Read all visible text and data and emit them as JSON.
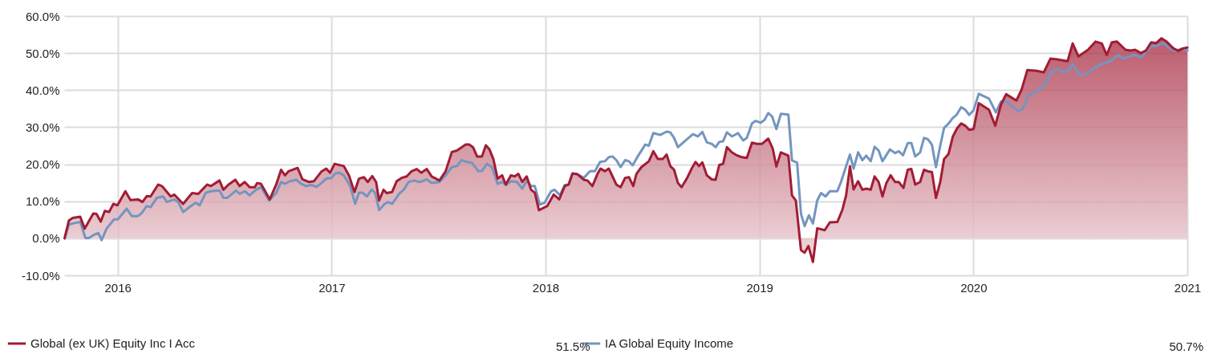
{
  "chart_data": {
    "type": "area",
    "xlim": [
      2015.75,
      2021
    ],
    "xticks": [
      2016,
      2017,
      2018,
      2019,
      2020,
      2021
    ],
    "ylim": [
      -10,
      60
    ],
    "yticks": [
      {
        "value": -10,
        "label": "-10.0%"
      },
      {
        "value": 0,
        "label": "0.0%"
      },
      {
        "value": 10,
        "label": "10.0%"
      },
      {
        "value": 20,
        "label": "20.0%"
      },
      {
        "value": 30,
        "label": "30.0%"
      },
      {
        "value": 40,
        "label": "40.0%"
      },
      {
        "value": 50,
        "label": "50.0%"
      },
      {
        "value": 60,
        "label": "60.0%"
      }
    ],
    "grid": true,
    "legend": "bottom",
    "annotations": [
      "51.5%",
      "50.7%"
    ],
    "series": [
      {
        "name": "Global (ex UK) Equity Inc I Acc",
        "color": "#a21c35",
        "x": [
          2015.752,
          2015.772,
          2015.79,
          2015.825,
          2015.846,
          2015.886,
          2015.901,
          2015.921,
          2015.94,
          2015.96,
          2015.98,
          2015.999,
          2016.036,
          2016.06,
          2016.095,
          2016.116,
          2016.136,
          2016.154,
          2016.189,
          2016.207,
          2016.248,
          2016.265,
          2016.306,
          2016.348,
          2016.377,
          2016.418,
          2016.436,
          2016.476,
          2016.494,
          2016.518,
          2016.55,
          2016.57,
          2016.594,
          2016.617,
          2016.641,
          2016.652,
          2016.67,
          2016.711,
          2016.741,
          2016.764,
          2016.782,
          2016.799,
          2016.841,
          2016.864,
          2016.893,
          2016.917,
          2016.952,
          2016.975,
          2016.993,
          2017.014,
          2017.057,
          2017.081,
          2017.107,
          2017.128,
          2017.151,
          2017.169,
          2017.19,
          2017.208,
          2017.222,
          2017.243,
          2017.257,
          2017.283,
          2017.304,
          2017.327,
          2017.351,
          2017.374,
          2017.398,
          2017.419,
          2017.445,
          2017.468,
          2017.504,
          2017.533,
          2017.562,
          2017.586,
          2017.627,
          2017.644,
          2017.662,
          2017.68,
          2017.703,
          2017.721,
          2017.738,
          2017.756,
          2017.776,
          2017.797,
          2017.814,
          2017.838,
          2017.856,
          2017.873,
          2017.891,
          2017.912,
          2017.932,
          2017.95,
          2017.969,
          2018.008,
          2018.038,
          2018.064,
          2018.09,
          2018.108,
          2018.126,
          2018.149,
          2018.179,
          2018.196,
          2018.219,
          2018.243,
          2018.257,
          2018.278,
          2018.296,
          2018.331,
          2018.351,
          2018.372,
          2018.39,
          2018.41,
          2018.425,
          2018.448,
          2018.483,
          2018.504,
          2018.525,
          2018.548,
          2018.566,
          2018.583,
          2018.601,
          2018.619,
          2018.636,
          2018.66,
          2018.683,
          2018.701,
          2018.718,
          2018.733,
          2018.754,
          2018.777,
          2018.795,
          2018.812,
          2018.83,
          2018.848,
          2018.871,
          2018.894,
          2018.918,
          2018.941,
          2018.965,
          2018.988,
          2019.012,
          2019.041,
          2019.062,
          2019.079,
          2019.1,
          2019.135,
          2019.152,
          2019.17,
          2019.194,
          2019.211,
          2019.229,
          2019.25,
          2019.27,
          2019.305,
          2019.329,
          2019.364,
          2019.387,
          2019.405,
          2019.423,
          2019.44,
          2019.461,
          2019.481,
          2019.499,
          2019.52,
          2019.538,
          2019.557,
          2019.575,
          2019.593,
          2019.613,
          2019.634,
          2019.651,
          2019.673,
          2019.693,
          2019.71,
          2019.728,
          2019.751,
          2019.769,
          2019.792,
          2019.806,
          2019.825,
          2019.845,
          2019.863,
          2019.884,
          2019.904,
          2019.924,
          2019.943,
          2019.962,
          2019.98,
          2020.001,
          2020.025,
          2020.073,
          2020.102,
          2020.129,
          2020.153,
          2020.201,
          2020.225,
          2020.252,
          2020.297,
          2020.329,
          2020.36,
          2020.392,
          2020.44,
          2020.464,
          2020.491,
          2020.536,
          2020.571,
          2020.6,
          2020.623,
          2020.647,
          2020.671,
          2020.711,
          2020.735,
          2020.756,
          2020.783,
          2020.807,
          2020.831,
          2020.855,
          2020.879,
          2020.903,
          2020.934,
          2020.958,
          2020.982,
          2021.0
        ],
        "values": [
          0,
          4.8,
          5.5,
          5.8,
          2.6,
          6.7,
          6.6,
          4.5,
          7.4,
          7.1,
          9.3,
          8.9,
          12.7,
          10.3,
          10.5,
          9.8,
          11.4,
          11.3,
          14.5,
          14.1,
          11.3,
          11.8,
          9.3,
          12.2,
          12.0,
          14.5,
          14.1,
          15.6,
          13.1,
          14.5,
          15.8,
          14.1,
          15.2,
          13.8,
          13.8,
          14.9,
          14.7,
          10.5,
          14.5,
          18.5,
          17.0,
          18.1,
          19.0,
          15.9,
          15.2,
          15.4,
          18.0,
          18.8,
          17.7,
          20.1,
          19.5,
          17.0,
          12.5,
          16.1,
          16.5,
          15.2,
          16.8,
          15.2,
          10.2,
          13.1,
          12.2,
          12.5,
          15.4,
          16.3,
          16.7,
          18.1,
          18.7,
          17.7,
          18.7,
          16.7,
          15.6,
          18.1,
          23.3,
          23.7,
          25.3,
          25.3,
          24.5,
          22.1,
          22.1,
          25.1,
          24.0,
          21.4,
          16.1,
          17.0,
          14.5,
          17.0,
          16.7,
          17.4,
          15.2,
          16.7,
          13.1,
          12.3,
          7.6,
          8.7,
          11.8,
          10.5,
          14.1,
          14.5,
          17.5,
          17.3,
          15.8,
          15.6,
          14.1,
          17.4,
          18.8,
          18.1,
          18.8,
          14.5,
          13.8,
          16.3,
          16.5,
          14.1,
          17.4,
          19.2,
          20.8,
          23.5,
          21.4,
          21.4,
          22.6,
          19.5,
          18.5,
          14.9,
          13.8,
          16.1,
          18.8,
          20.6,
          19.5,
          20.5,
          17.0,
          15.9,
          15.8,
          19.8,
          20.1,
          24.6,
          23.2,
          22.4,
          21.9,
          21.7,
          25.8,
          25.5,
          25.5,
          26.9,
          24.2,
          19.4,
          23.2,
          22.3,
          11.6,
          10.2,
          -3.2,
          -3.9,
          -2.1,
          -6.4,
          2.7,
          2.2,
          4.3,
          4.4,
          7.6,
          11.6,
          19.4,
          13.2,
          15.4,
          13.1,
          13.4,
          13.1,
          16.7,
          15.2,
          11.3,
          14.9,
          17.0,
          15.2,
          15.2,
          13.6,
          18.5,
          18.7,
          14.5,
          15.2,
          18.5,
          18.0,
          17.9,
          10.9,
          15.2,
          21.4,
          22.8,
          27.5,
          29.7,
          31.0,
          30.4,
          29.3,
          29.5,
          36.5,
          34.7,
          30.4,
          36.1,
          38.9,
          37.2,
          40.1,
          45.4,
          45.2,
          44.8,
          48.5,
          48.3,
          47.8,
          52.6,
          49.1,
          50.9,
          53.1,
          52.6,
          49.5,
          52.9,
          53.1,
          50.9,
          50.7,
          50.9,
          50.0,
          50.7,
          52.9,
          52.7,
          54.0,
          53.1,
          51.3,
          50.6,
          51.3,
          51.5
        ]
      },
      {
        "name": "IA Global Equity Income",
        "type": "line",
        "color": "#7495bf",
        "x": [
          2015.752,
          2015.772,
          2015.79,
          2015.825,
          2015.849,
          2015.866,
          2015.895,
          2015.91,
          2015.925,
          2015.948,
          2015.983,
          2016.001,
          2016.042,
          2016.066,
          2016.095,
          2016.113,
          2016.136,
          2016.154,
          2016.183,
          2016.212,
          2016.23,
          2016.265,
          2016.283,
          2016.306,
          2016.342,
          2016.365,
          2016.383,
          2016.412,
          2016.436,
          2016.476,
          2016.494,
          2016.512,
          2016.553,
          2016.57,
          2016.594,
          2016.617,
          2016.647,
          2016.67,
          2016.708,
          2016.741,
          2016.764,
          2016.782,
          2016.805,
          2016.835,
          2016.858,
          2016.881,
          2016.905,
          2016.929,
          2016.952,
          2016.975,
          2016.999,
          2017.017,
          2017.034,
          2017.057,
          2017.087,
          2017.11,
          2017.128,
          2017.145,
          2017.165,
          2017.187,
          2017.204,
          2017.222,
          2017.245,
          2017.263,
          2017.283,
          2017.316,
          2017.337,
          2017.36,
          2017.386,
          2017.41,
          2017.433,
          2017.445,
          2017.468,
          2017.504,
          2017.533,
          2017.562,
          2017.586,
          2017.607,
          2017.633,
          2017.656,
          2017.686,
          2017.703,
          2017.726,
          2017.75,
          2017.776,
          2017.797,
          2017.817,
          2017.838,
          2017.867,
          2017.891,
          2017.914,
          2017.932,
          2017.95,
          2017.973,
          2017.996,
          2018.026,
          2018.043,
          2018.067,
          2018.09,
          2018.108,
          2018.126,
          2018.149,
          2018.179,
          2018.208,
          2018.231,
          2018.255,
          2018.278,
          2018.296,
          2018.313,
          2018.331,
          2018.351,
          2018.372,
          2018.39,
          2018.407,
          2018.431,
          2018.466,
          2018.483,
          2018.504,
          2018.536,
          2018.566,
          2018.583,
          2018.601,
          2018.619,
          2018.654,
          2018.689,
          2018.712,
          2018.733,
          2018.754,
          2018.777,
          2018.795,
          2018.812,
          2018.83,
          2018.848,
          2018.871,
          2018.9,
          2018.924,
          2018.941,
          2018.965,
          2018.982,
          2019.006,
          2019.024,
          2019.041,
          2019.059,
          2019.079,
          2019.1,
          2019.135,
          2019.152,
          2019.176,
          2019.194,
          2019.211,
          2019.231,
          2019.25,
          2019.27,
          2019.288,
          2019.309,
          2019.329,
          2019.364,
          2019.381,
          2019.423,
          2019.44,
          2019.461,
          2019.481,
          2019.499,
          2019.52,
          2019.538,
          2019.557,
          2019.575,
          2019.61,
          2019.634,
          2019.651,
          2019.671,
          2019.693,
          2019.71,
          2019.728,
          2019.751,
          2019.769,
          2019.786,
          2019.806,
          2019.825,
          2019.845,
          2019.863,
          2019.884,
          2019.904,
          2019.921,
          2019.943,
          2019.962,
          2019.98,
          2020.001,
          2020.025,
          2020.073,
          2020.105,
          2020.129,
          2020.153,
          2020.209,
          2020.233,
          2020.257,
          2020.289,
          2020.332,
          2020.368,
          2020.392,
          2020.421,
          2020.44,
          2020.464,
          2020.496,
          2020.52,
          2020.56,
          2020.6,
          2020.64,
          2020.676,
          2020.703,
          2020.751,
          2020.783,
          2020.815,
          2020.831,
          2020.855,
          2020.887,
          2020.919,
          2020.943,
          2020.975,
          2021.0
        ],
        "values": [
          0,
          3.7,
          4.0,
          4.4,
          0.1,
          0.1,
          1.1,
          1.4,
          -0.5,
          2.6,
          5.1,
          5.1,
          8.0,
          6.0,
          6.0,
          6.9,
          8.7,
          8.4,
          10.9,
          11.3,
          9.8,
          10.5,
          9.8,
          7.1,
          8.7,
          9.6,
          8.9,
          12.3,
          12.7,
          12.9,
          10.9,
          10.9,
          12.9,
          12.0,
          12.7,
          11.6,
          13.1,
          13.8,
          10.2,
          12.2,
          15.2,
          14.7,
          15.4,
          15.8,
          14.7,
          14.1,
          14.4,
          13.9,
          14.9,
          16.1,
          16.3,
          17.5,
          17.7,
          17.0,
          14.1,
          9.3,
          12.3,
          12.3,
          11.3,
          13.1,
          12.3,
          7.6,
          9.1,
          9.8,
          9.3,
          12.0,
          13.1,
          15.2,
          15.6,
          15.2,
          15.6,
          15.9,
          14.9,
          15.2,
          17.0,
          19.2,
          19.5,
          21.1,
          20.6,
          20.4,
          18.1,
          18.2,
          20.1,
          19.2,
          14.7,
          15.2,
          14.4,
          15.4,
          15.2,
          13.4,
          15.6,
          14.1,
          14.1,
          9.1,
          9.6,
          12.7,
          13.1,
          11.6,
          14.4,
          14.5,
          17.4,
          17.3,
          16.3,
          18.1,
          18.1,
          20.6,
          20.8,
          21.9,
          22.1,
          21.1,
          19.2,
          21.1,
          20.8,
          19.7,
          22.1,
          25.3,
          25.0,
          28.4,
          27.9,
          28.8,
          28.6,
          27.1,
          24.6,
          26.4,
          28.1,
          27.5,
          28.7,
          25.9,
          25.5,
          24.6,
          26.0,
          26.2,
          28.6,
          27.5,
          28.4,
          26.4,
          27.1,
          31.0,
          31.7,
          31.2,
          32.0,
          33.8,
          32.9,
          29.5,
          33.6,
          33.4,
          21.0,
          20.4,
          6.6,
          3.3,
          6.2,
          4.0,
          10.2,
          12.2,
          11.3,
          12.7,
          12.7,
          15.2,
          22.6,
          18.8,
          23.2,
          21.1,
          22.3,
          20.8,
          24.7,
          23.7,
          20.8,
          24.0,
          23.0,
          23.5,
          22.4,
          25.7,
          25.7,
          22.1,
          23.2,
          27.1,
          26.8,
          25.3,
          19.2,
          25.0,
          29.8,
          31.0,
          32.5,
          33.3,
          35.4,
          34.7,
          33.3,
          34.6,
          39.0,
          37.7,
          34.0,
          36.9,
          37.0,
          34.3,
          35.1,
          38.7,
          39.4,
          41.3,
          45.2,
          45.7,
          44.8,
          45.0,
          47.0,
          44.1,
          44.2,
          45.7,
          47.1,
          47.8,
          49.5,
          48.5,
          49.5,
          48.8,
          50.9,
          52.0,
          51.9,
          52.7,
          51.3,
          50.6,
          51.2,
          50.7
        ]
      }
    ]
  }
}
